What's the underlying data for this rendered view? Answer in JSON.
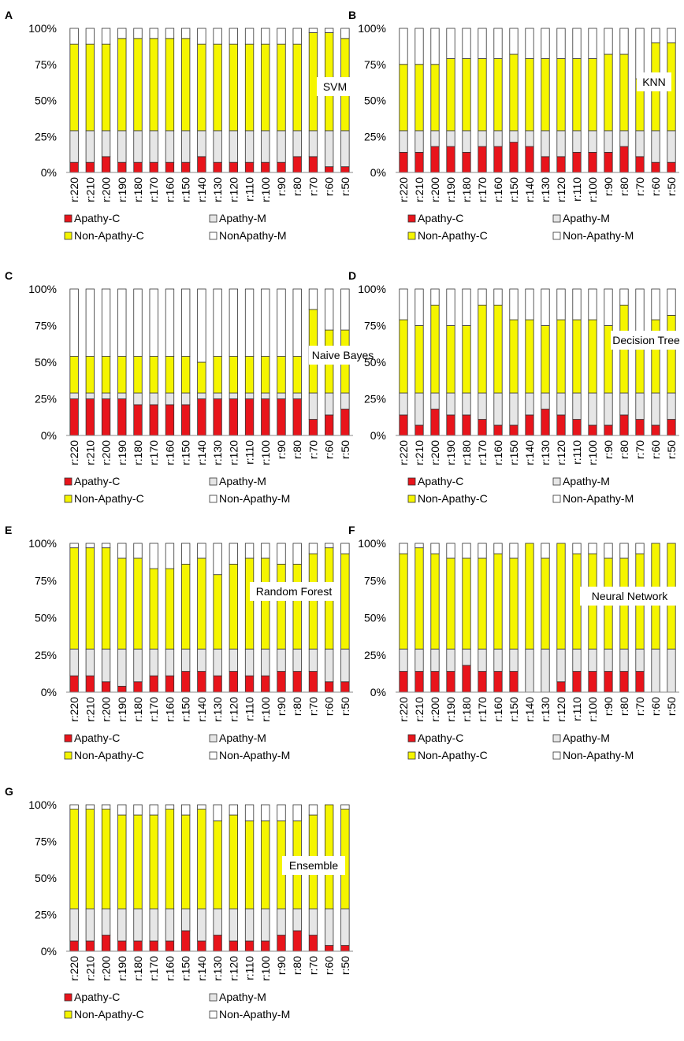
{
  "colors": {
    "apathy_c": "#e8141b",
    "apathy_m": "#e6e6e6",
    "non_apathy_c": "#f5f500",
    "non_apathy_m": "#ffffff",
    "stroke": "#333333"
  },
  "chart_data": [
    {
      "type": "bar",
      "stacked": true,
      "panel_letter": "A",
      "title": "SVM",
      "categories": [
        "r:220",
        "r:210",
        "r:200",
        "r:190",
        "r:180",
        "r:170",
        "r:160",
        "r:150",
        "r:140",
        "r:130",
        "r:120",
        "r:110",
        "r:100",
        "r:90",
        "r:80",
        "r:70",
        "r:60",
        "r:50"
      ],
      "y_ticks": [
        "0%",
        "25%",
        "50%",
        "75%",
        "100%"
      ],
      "ylim": [
        0,
        100
      ],
      "legend": [
        "Apathy-C",
        "Apathy-M",
        "Non-Apathy-C",
        "NonApathy-M"
      ],
      "series": [
        {
          "name": "Apathy-C",
          "values": [
            7,
            7,
            11,
            7,
            7,
            7,
            7,
            7,
            11,
            7,
            7,
            7,
            7,
            7,
            11,
            11,
            4,
            4
          ]
        },
        {
          "name": "Apathy-M",
          "values": [
            22,
            22,
            18,
            22,
            22,
            22,
            22,
            22,
            18,
            22,
            22,
            22,
            22,
            22,
            18,
            18,
            25,
            25
          ]
        },
        {
          "name": "Non-Apathy-C",
          "values": [
            60,
            60,
            60,
            64,
            64,
            64,
            64,
            64,
            60,
            60,
            60,
            60,
            60,
            60,
            60,
            68,
            68,
            64
          ]
        },
        {
          "name": "NonApathy-M",
          "values": [
            11,
            11,
            11,
            7,
            7,
            7,
            7,
            7,
            11,
            11,
            11,
            11,
            11,
            11,
            11,
            3,
            3,
            7
          ]
        }
      ]
    },
    {
      "type": "bar",
      "stacked": true,
      "panel_letter": "B",
      "title": "KNN",
      "categories": [
        "r:220",
        "r:210",
        "r:200",
        "r:190",
        "r:180",
        "r:170",
        "r:160",
        "r:150",
        "r:140",
        "r:130",
        "r:120",
        "r:110",
        "r:100",
        "r:90",
        "r:80",
        "r:70",
        "r:60",
        "r:50"
      ],
      "y_ticks": [
        "0%",
        "25%",
        "50%",
        "75%",
        "100%"
      ],
      "ylim": [
        0,
        100
      ],
      "legend": [
        "Apathy-C",
        "Apathy-M",
        "Non-Apathy-C",
        "Non-Apathy-M"
      ],
      "series": [
        {
          "name": "Apathy-C",
          "values": [
            14,
            14,
            18,
            18,
            14,
            18,
            18,
            21,
            18,
            11,
            11,
            14,
            14,
            14,
            18,
            11,
            7,
            7
          ]
        },
        {
          "name": "Apathy-M",
          "values": [
            15,
            15,
            11,
            11,
            15,
            11,
            11,
            8,
            11,
            18,
            18,
            15,
            15,
            15,
            11,
            18,
            22,
            22
          ]
        },
        {
          "name": "Non-Apathy-C",
          "values": [
            46,
            46,
            46,
            50,
            50,
            50,
            50,
            53,
            50,
            50,
            50,
            50,
            50,
            53,
            53,
            36,
            61,
            61
          ]
        },
        {
          "name": "Non-Apathy-M",
          "values": [
            25,
            25,
            25,
            21,
            21,
            21,
            21,
            18,
            21,
            21,
            21,
            21,
            21,
            18,
            18,
            35,
            10,
            10
          ]
        }
      ]
    },
    {
      "type": "bar",
      "stacked": true,
      "panel_letter": "C",
      "title": "Naive  Bayes",
      "categories": [
        "r:220",
        "r:210",
        "r:200",
        "r:190",
        "r:180",
        "r:170",
        "r:160",
        "r:150",
        "r:140",
        "r:130",
        "r:120",
        "r:110",
        "r:100",
        "r:90",
        "r:80",
        "r:70",
        "r:60",
        "r:50"
      ],
      "y_ticks": [
        "0%",
        "25%",
        "50%",
        "75%",
        "100%"
      ],
      "ylim": [
        0,
        100
      ],
      "legend": [
        "Apathy-C",
        "Apathy-M",
        "Non-Apathy-C",
        "Non-Apathy-M"
      ],
      "series": [
        {
          "name": "Apathy-C",
          "values": [
            25,
            25,
            25,
            25,
            21,
            21,
            21,
            21,
            25,
            25,
            25,
            25,
            25,
            25,
            25,
            11,
            14,
            18
          ]
        },
        {
          "name": "Apathy-M",
          "values": [
            4,
            4,
            4,
            4,
            8,
            8,
            8,
            8,
            4,
            4,
            4,
            4,
            4,
            4,
            4,
            18,
            15,
            11
          ]
        },
        {
          "name": "Non-Apathy-C",
          "values": [
            25,
            25,
            25,
            25,
            25,
            25,
            25,
            25,
            21,
            25,
            25,
            25,
            25,
            25,
            25,
            57,
            43,
            43
          ]
        },
        {
          "name": "Non-Apathy-M",
          "values": [
            46,
            46,
            46,
            46,
            46,
            46,
            46,
            46,
            50,
            46,
            46,
            46,
            46,
            46,
            46,
            14,
            28,
            28
          ]
        }
      ]
    },
    {
      "type": "bar",
      "stacked": true,
      "panel_letter": "D",
      "title": "Decision Tree",
      "categories": [
        "r:220",
        "r:210",
        "r:200",
        "r:190",
        "r:180",
        "r:170",
        "r:160",
        "r:150",
        "r:140",
        "r:130",
        "r:120",
        "r:110",
        "r:100",
        "r:90",
        "r:80",
        "r:70",
        "r:60",
        "r:50"
      ],
      "y_ticks": [
        "0%",
        "25%",
        "50%",
        "75%",
        "100%"
      ],
      "ylim": [
        0,
        100
      ],
      "legend": [
        "Apathy-C",
        "Apathy-M",
        "Non-Apathy-C",
        "Non-Apathy-M"
      ],
      "series": [
        {
          "name": "Apathy-C",
          "values": [
            14,
            7,
            18,
            14,
            14,
            11,
            7,
            7,
            14,
            18,
            14,
            11,
            7,
            7,
            14,
            11,
            7,
            11
          ]
        },
        {
          "name": "Apathy-M",
          "values": [
            15,
            22,
            11,
            15,
            15,
            18,
            22,
            22,
            15,
            11,
            15,
            18,
            22,
            22,
            15,
            18,
            22,
            18
          ]
        },
        {
          "name": "Non-Apathy-C",
          "values": [
            50,
            46,
            60,
            46,
            46,
            60,
            60,
            50,
            50,
            46,
            50,
            50,
            50,
            46,
            60,
            36,
            50,
            53
          ]
        },
        {
          "name": "Non-Apathy-M",
          "values": [
            21,
            25,
            11,
            25,
            25,
            11,
            11,
            21,
            21,
            25,
            21,
            21,
            21,
            25,
            11,
            35,
            21,
            18
          ]
        }
      ]
    },
    {
      "type": "bar",
      "stacked": true,
      "panel_letter": "E",
      "title": "Random Forest",
      "categories": [
        "r:220",
        "r:210",
        "r:200",
        "r:190",
        "r:180",
        "r:170",
        "r:160",
        "r:150",
        "r:140",
        "r:130",
        "r:120",
        "r:110",
        "r:100",
        "r:90",
        "r:80",
        "r:70",
        "r:60",
        "r:50"
      ],
      "y_ticks": [
        "0%",
        "25%",
        "50%",
        "75%",
        "100%"
      ],
      "ylim": [
        0,
        100
      ],
      "legend": [
        "Apathy-C",
        "Apathy-M",
        "Non-Apathy-C",
        "Non-Apathy-M"
      ],
      "series": [
        {
          "name": "Apathy-C",
          "values": [
            11,
            11,
            7,
            4,
            7,
            11,
            11,
            14,
            14,
            11,
            14,
            11,
            11,
            14,
            14,
            14,
            7,
            7
          ]
        },
        {
          "name": "Apathy-M",
          "values": [
            18,
            18,
            22,
            25,
            22,
            18,
            18,
            15,
            15,
            18,
            15,
            18,
            18,
            15,
            15,
            15,
            22,
            22
          ]
        },
        {
          "name": "Non-Apathy-C",
          "values": [
            68,
            68,
            68,
            61,
            61,
            54,
            54,
            57,
            61,
            50,
            57,
            61,
            61,
            57,
            57,
            64,
            68,
            64
          ]
        },
        {
          "name": "Non-Apathy-M",
          "values": [
            3,
            3,
            3,
            10,
            10,
            17,
            17,
            14,
            10,
            21,
            14,
            10,
            10,
            14,
            14,
            7,
            3,
            7
          ]
        }
      ]
    },
    {
      "type": "bar",
      "stacked": true,
      "panel_letter": "F",
      "title": "Neural Network",
      "categories": [
        "r:220",
        "r:210",
        "r:200",
        "r:190",
        "r:180",
        "r:170",
        "r:160",
        "r:150",
        "r:140",
        "r:130",
        "r:120",
        "r:110",
        "r:100",
        "r:90",
        "r:80",
        "r:70",
        "r:60",
        "r:50"
      ],
      "y_ticks": [
        "0%",
        "25%",
        "50%",
        "75%",
        "100%"
      ],
      "ylim": [
        0,
        100
      ],
      "legend": [
        "Apathy-C",
        "Apathy-M",
        "Non-Apathy-C",
        "Non-Apathy-M"
      ],
      "series": [
        {
          "name": "Apathy-C",
          "values": [
            14,
            14,
            14,
            14,
            18,
            14,
            14,
            14,
            0,
            0,
            7,
            14,
            14,
            14,
            14,
            14,
            0,
            0
          ]
        },
        {
          "name": "Apathy-M",
          "values": [
            15,
            15,
            15,
            15,
            11,
            15,
            15,
            15,
            29,
            29,
            22,
            15,
            15,
            15,
            15,
            15,
            29,
            29
          ]
        },
        {
          "name": "Non-Apathy-C",
          "values": [
            64,
            68,
            64,
            61,
            61,
            61,
            64,
            61,
            71,
            61,
            71,
            64,
            64,
            61,
            61,
            64,
            71,
            71
          ]
        },
        {
          "name": "Non-Apathy-M",
          "values": [
            7,
            3,
            7,
            10,
            10,
            10,
            7,
            10,
            0,
            10,
            0,
            7,
            7,
            10,
            10,
            7,
            0,
            0
          ]
        }
      ]
    },
    {
      "type": "bar",
      "stacked": true,
      "panel_letter": "G",
      "title": "Ensemble",
      "categories": [
        "r:220",
        "r:210",
        "r:200",
        "r:190",
        "r:180",
        "r:170",
        "r:160",
        "r:150",
        "r:140",
        "r:130",
        "r:120",
        "r:110",
        "r:100",
        "r:90",
        "r:80",
        "r:70",
        "r:60",
        "r:50"
      ],
      "y_ticks": [
        "0%",
        "25%",
        "50%",
        "75%",
        "100%"
      ],
      "ylim": [
        0,
        100
      ],
      "legend": [
        "Apathy-C",
        "Apathy-M",
        "Non-Apathy-C",
        "Non-Apathy-M"
      ],
      "series": [
        {
          "name": "Apathy-C",
          "values": [
            7,
            7,
            11,
            7,
            7,
            7,
            7,
            14,
            7,
            11,
            7,
            7,
            7,
            11,
            14,
            11,
            4,
            4
          ]
        },
        {
          "name": "Apathy-M",
          "values": [
            22,
            22,
            18,
            22,
            22,
            22,
            22,
            15,
            22,
            18,
            22,
            22,
            22,
            18,
            15,
            18,
            25,
            25
          ]
        },
        {
          "name": "Non-Apathy-C",
          "values": [
            68,
            68,
            68,
            64,
            64,
            64,
            68,
            64,
            68,
            60,
            64,
            60,
            60,
            60,
            60,
            64,
            71,
            68
          ]
        },
        {
          "name": "Non-Apathy-M",
          "values": [
            3,
            3,
            3,
            7,
            7,
            7,
            3,
            7,
            3,
            11,
            7,
            11,
            11,
            11,
            11,
            7,
            0,
            3
          ]
        }
      ]
    }
  ]
}
